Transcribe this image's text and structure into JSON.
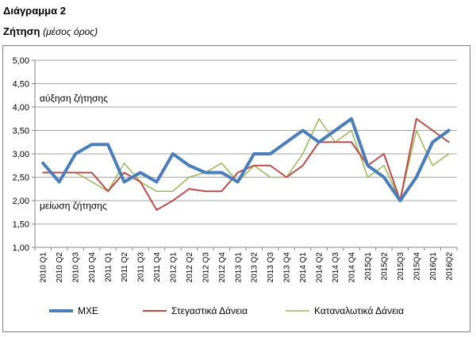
{
  "header": {
    "title": "Διάγραμμα 2",
    "subtitle_main": "Ζήτηση",
    "subtitle_note": "(μέσος όρος)"
  },
  "chart_data": {
    "type": "line",
    "categories": [
      "2010 Q1",
      "2010 Q2",
      "2010 Q3",
      "2010 Q4",
      "2011 Q1",
      "2011 Q2",
      "2011 Q3",
      "2011 Q4",
      "2012 Q1",
      "2012 Q2",
      "2012 Q3",
      "2012 Q4",
      "2013 Q1",
      "2013 Q2",
      "2013 Q3",
      "2013 Q4",
      "2014 Q1",
      "2014 Q2",
      "2014 Q3",
      "2014 Q4",
      "2015Q1",
      "2015Q2",
      "2015Q3",
      "2015Q4",
      "2016Q1",
      "2016Q2"
    ],
    "ylim": [
      1.0,
      5.0
    ],
    "yticks": [
      "1,00",
      "1,50",
      "2,00",
      "2,50",
      "3,00",
      "3,50",
      "4,00",
      "4,50",
      "5,00"
    ],
    "ytick_values": [
      1.0,
      1.5,
      2.0,
      2.5,
      3.0,
      3.5,
      4.0,
      4.5,
      5.0
    ],
    "grid": true,
    "legend_position": "bottom",
    "annotations": [
      {
        "text": "αύξηση ζήτησης",
        "y": 4.12
      },
      {
        "text": "μείωση ζήτησης",
        "y": 1.82
      }
    ],
    "series": [
      {
        "name": "MXE",
        "color": "#4a7ebb",
        "width": 4,
        "values": [
          2.8,
          2.4,
          3.0,
          3.2,
          3.2,
          2.4,
          2.6,
          2.4,
          3.0,
          2.75,
          2.6,
          2.6,
          2.4,
          3.0,
          3.0,
          3.25,
          3.5,
          3.25,
          3.5,
          3.75,
          2.75,
          2.5,
          2.0,
          2.5,
          3.25,
          3.5
        ]
      },
      {
        "name": "Στεγαστικά Δάνεια",
        "color": "#be4b48",
        "width": 2,
        "values": [
          2.6,
          2.6,
          2.6,
          2.6,
          2.2,
          2.6,
          2.4,
          1.8,
          2.0,
          2.25,
          2.2,
          2.2,
          2.6,
          2.75,
          2.75,
          2.5,
          2.75,
          3.25,
          3.25,
          3.25,
          2.75,
          3.0,
          2.0,
          3.75,
          3.5,
          3.25
        ]
      },
      {
        "name": "Καταναλωτικά Δάνεια",
        "color": "#98b954",
        "width": 1.5,
        "values": [
          2.6,
          2.6,
          2.6,
          2.4,
          2.2,
          2.8,
          2.4,
          2.2,
          2.2,
          2.5,
          2.6,
          2.8,
          2.4,
          2.75,
          2.5,
          2.5,
          3.0,
          3.75,
          3.25,
          3.5,
          2.5,
          2.75,
          2.0,
          3.5,
          2.75,
          3.0
        ]
      }
    ]
  }
}
